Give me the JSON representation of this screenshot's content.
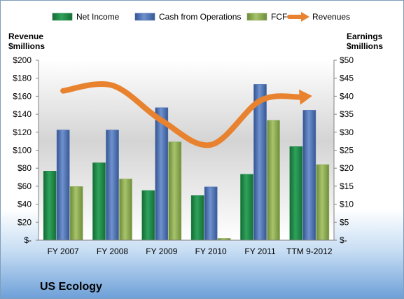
{
  "chart_data": {
    "type": "bar",
    "title": "",
    "company_label": "US Ecology",
    "categories": [
      "FY 2007",
      "FY 2008",
      "FY 2009",
      "FY 2010",
      "FY 2011",
      "TTM 9-2012"
    ],
    "left_axis": {
      "label_line1": "Revenue",
      "label_line2": "$millions",
      "ylim": [
        0,
        200
      ],
      "ticks": [
        0,
        20,
        40,
        60,
        80,
        100,
        120,
        140,
        160,
        180,
        200
      ],
      "tick_labels": [
        "$-",
        "$20",
        "$40",
        "$60",
        "$80",
        "$100",
        "$120",
        "$140",
        "$160",
        "$180",
        "$200"
      ]
    },
    "right_axis": {
      "label_line1": "Earnings",
      "label_line2": "$millions",
      "ylim": [
        0,
        50
      ],
      "ticks": [
        0,
        5,
        10,
        15,
        20,
        25,
        30,
        35,
        40,
        45,
        50
      ],
      "tick_labels": [
        "$-",
        "$5",
        "$10",
        "$15",
        "$20",
        "$25",
        "$30",
        "$35",
        "$40",
        "$45",
        "$50"
      ]
    },
    "series": [
      {
        "name": "Net Income",
        "kind": "bar",
        "axis": "right",
        "color": "#1f8a47",
        "values": [
          19.2,
          21.5,
          13.8,
          12.4,
          18.3,
          26.0
        ]
      },
      {
        "name": "Cash from Operations",
        "kind": "bar",
        "axis": "right",
        "color": "#4a6db5",
        "values": [
          30.6,
          30.6,
          36.8,
          14.8,
          43.3,
          36.1
        ]
      },
      {
        "name": "FCF",
        "kind": "bar",
        "axis": "right",
        "color": "#8fae52",
        "values": [
          14.9,
          17.0,
          27.3,
          0.5,
          33.3,
          21.0
        ]
      },
      {
        "name": "Revenues",
        "kind": "line",
        "axis": "left",
        "color": "#e8822e",
        "values": [
          166,
          172,
          133,
          106,
          155,
          160
        ]
      }
    ],
    "grid": false,
    "legend_position": "top"
  }
}
